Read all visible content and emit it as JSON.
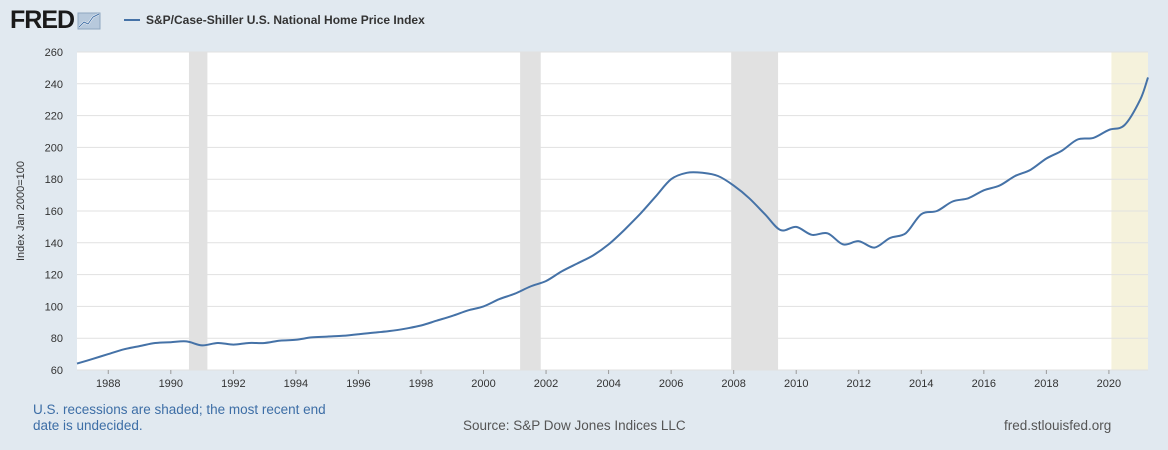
{
  "header": {
    "logo_text": "FRED",
    "logo_icon": "chart-line-icon",
    "legend_label": "S&P/Case-Shiller U.S. National Home Price Index",
    "series_color": "#4572a7"
  },
  "footer": {
    "recession_note": "U.S. recessions are shaded; the most recent end date is undecided.",
    "source": "Source: S&P Dow Jones Indices LLC",
    "url": "fred.stlouisfed.org"
  },
  "chart_data": {
    "type": "line",
    "ylabel": "Index Jan 2000=100",
    "xlabel": "",
    "title": "",
    "ylim": [
      60,
      260
    ],
    "y_ticks": [
      60,
      80,
      100,
      120,
      140,
      160,
      180,
      200,
      220,
      240,
      260
    ],
    "xlim": [
      1987.0,
      2021.25
    ],
    "x_ticks": [
      1988,
      1990,
      1992,
      1994,
      1996,
      1998,
      2000,
      2002,
      2004,
      2006,
      2008,
      2010,
      2012,
      2014,
      2016,
      2018,
      2020
    ],
    "grid": true,
    "legend_placement": "top-left",
    "recessions": [
      {
        "start": 1990.58,
        "end": 1991.17,
        "color": "#e1e1e1"
      },
      {
        "start": 2001.17,
        "end": 2001.83,
        "color": "#e1e1e1"
      },
      {
        "start": 2007.92,
        "end": 2009.42,
        "color": "#e1e1e1"
      },
      {
        "start": 2020.08,
        "end": 2021.25,
        "color": "#f5f2dc",
        "undecided": true
      }
    ],
    "series": [
      {
        "name": "S&P/Case-Shiller U.S. National Home Price Index",
        "color": "#4572a7",
        "x": [
          1987.0,
          1987.5,
          1988.0,
          1988.5,
          1989.0,
          1989.5,
          1990.0,
          1990.5,
          1991.0,
          1991.5,
          1992.0,
          1992.5,
          1993.0,
          1993.5,
          1994.0,
          1994.5,
          1995.0,
          1995.5,
          1996.0,
          1996.5,
          1997.0,
          1997.5,
          1998.0,
          1998.5,
          1999.0,
          1999.5,
          2000.0,
          2000.5,
          2001.0,
          2001.5,
          2002.0,
          2002.5,
          2003.0,
          2003.5,
          2004.0,
          2004.5,
          2005.0,
          2005.5,
          2006.0,
          2006.5,
          2007.0,
          2007.5,
          2008.0,
          2008.5,
          2009.0,
          2009.5,
          2010.0,
          2010.5,
          2011.0,
          2011.5,
          2012.0,
          2012.5,
          2013.0,
          2013.5,
          2014.0,
          2014.5,
          2015.0,
          2015.5,
          2016.0,
          2016.5,
          2017.0,
          2017.5,
          2018.0,
          2018.5,
          2019.0,
          2019.5,
          2020.0,
          2020.5,
          2021.0,
          2021.25
        ],
        "values": [
          64,
          67,
          70,
          73,
          75,
          77,
          77.5,
          78,
          75.5,
          77,
          76,
          77,
          77,
          78.5,
          79,
          80.5,
          81,
          81.5,
          82.5,
          83.5,
          84.5,
          86,
          88,
          91,
          94,
          97.5,
          100,
          104.5,
          108,
          112.5,
          116,
          122,
          127,
          132,
          139,
          148,
          158,
          169,
          180,
          184,
          184,
          182,
          176,
          168,
          158,
          148,
          150,
          145,
          146,
          139,
          141,
          137,
          143,
          146,
          158,
          160,
          166,
          168,
          173,
          176,
          182,
          186,
          193,
          198,
          205,
          206,
          211,
          214,
          230,
          244
        ]
      }
    ]
  }
}
